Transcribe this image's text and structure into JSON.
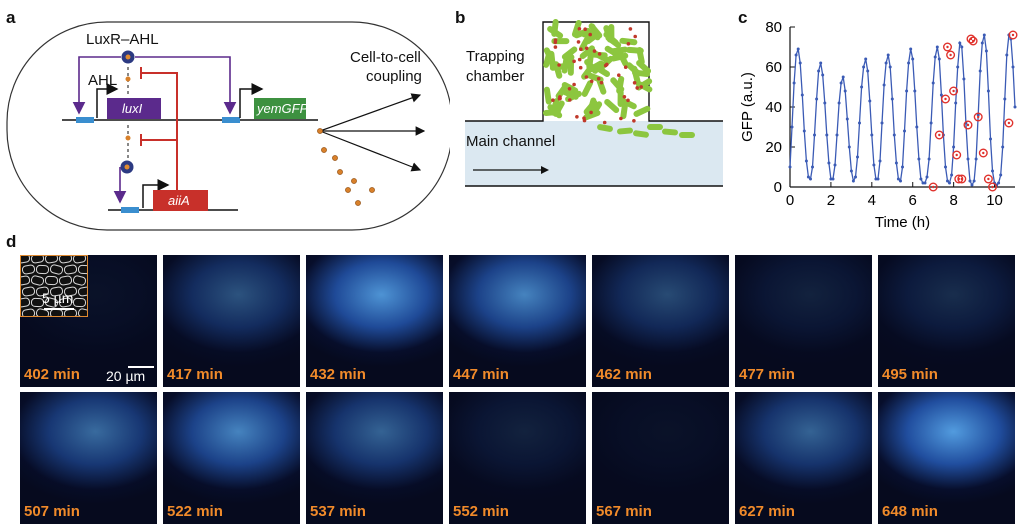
{
  "panels": {
    "a": {
      "letter": "a",
      "luxr_ahl": "LuxR–AHL",
      "ahl": "AHL",
      "luxI": "luxI",
      "yemGFP": "yemGFP",
      "aiiA": "aiiA",
      "coupling": "Cell-to-cell coupling",
      "coupling_line1": "Cell-to-cell",
      "coupling_line2": "coupling",
      "colors": {
        "activation": "#5b2a8c",
        "repression": "#c8302a",
        "luxI_box": "#5b2a8c",
        "gfp_box": "#3d9140",
        "aiiA_box": "#c8302a",
        "promoter": "#3a8ecf",
        "ahl_dot": "#d8802a"
      }
    },
    "b": {
      "letter": "b",
      "trapping_line1": "Trapping",
      "trapping_line2": "chamber",
      "main_channel": "Main channel",
      "colors": {
        "channel": "#dbe8f1",
        "cell": "#8cc63f",
        "ahl_dot": "#c0392b"
      }
    },
    "c": {
      "letter": "c"
    },
    "d": {
      "letter": "d",
      "inset_scale": "5 µm",
      "frame_scale": "20 µm",
      "frames": [
        {
          "time": "402 min",
          "level": 0.05
        },
        {
          "time": "417 min",
          "level": 0.45
        },
        {
          "time": "432 min",
          "level": 0.85
        },
        {
          "time": "447 min",
          "level": 0.75
        },
        {
          "time": "462 min",
          "level": 0.4
        },
        {
          "time": "477 min",
          "level": 0.15
        },
        {
          "time": "495 min",
          "level": 0.22
        },
        {
          "time": "507 min",
          "level": 0.6
        },
        {
          "time": "522 min",
          "level": 0.75
        },
        {
          "time": "537 min",
          "level": 0.55
        },
        {
          "time": "552 min",
          "level": 0.15
        },
        {
          "time": "567 min",
          "level": 0.05
        },
        {
          "time": "627 min",
          "level": 0.55
        },
        {
          "time": "648 min",
          "level": 0.9
        }
      ]
    }
  },
  "chart_data": {
    "type": "line",
    "xlabel": "Time (h)",
    "ylabel": "GFP (a.u.)",
    "xlim": [
      0,
      11
    ],
    "ylim": [
      0,
      80
    ],
    "xticks": [
      "0",
      "2",
      "4",
      "6",
      "8",
      "10"
    ],
    "yticks": [
      "0",
      "20",
      "40",
      "60",
      "80"
    ],
    "grid": false,
    "series": [
      {
        "style": "blue line with small dot markers",
        "color": "#3b5bb5",
        "x": [
          0,
          0.1,
          0.2,
          0.3,
          0.4,
          0.5,
          0.6,
          0.7,
          0.8,
          0.9,
          1.0,
          1.1,
          1.2,
          1.3,
          1.4,
          1.5,
          1.6,
          1.7,
          1.8,
          1.9,
          2.0,
          2.1,
          2.2,
          2.3,
          2.4,
          2.5,
          2.6,
          2.7,
          2.8,
          2.9,
          3.0,
          3.1,
          3.2,
          3.3,
          3.4,
          3.5,
          3.6,
          3.7,
          3.8,
          3.9,
          4.0,
          4.1,
          4.2,
          4.3,
          4.4,
          4.5,
          4.6,
          4.7,
          4.8,
          4.9,
          5.0,
          5.1,
          5.2,
          5.3,
          5.4,
          5.5,
          5.6,
          5.7,
          5.8,
          5.9,
          6.0,
          6.1,
          6.2,
          6.3,
          6.4,
          6.5,
          6.6,
          6.7,
          6.8,
          6.9,
          7.0,
          7.1,
          7.2,
          7.3,
          7.4,
          7.5,
          7.6,
          7.7,
          7.8,
          7.9,
          8.0,
          8.1,
          8.2,
          8.3,
          8.4,
          8.5,
          8.6,
          8.7,
          8.8,
          8.9,
          9.0,
          9.1,
          9.2,
          9.3,
          9.4,
          9.5,
          9.6,
          9.7,
          9.8,
          9.9,
          10.0,
          10.1,
          10.2,
          10.3,
          10.4,
          10.5,
          10.6,
          10.7,
          10.8,
          10.9,
          11.0
        ],
        "y": [
          10,
          30,
          52,
          66,
          69,
          62,
          46,
          28,
          13,
          5,
          4,
          10,
          26,
          44,
          58,
          62,
          56,
          42,
          26,
          12,
          4,
          4,
          11,
          26,
          42,
          52,
          55,
          48,
          34,
          20,
          8,
          3,
          5,
          15,
          32,
          50,
          60,
          64,
          58,
          43,
          26,
          11,
          4,
          4,
          13,
          32,
          51,
          62,
          66,
          60,
          44,
          26,
          12,
          4,
          3,
          10,
          28,
          48,
          62,
          69,
          64,
          48,
          30,
          14,
          4,
          2,
          2,
          5,
          14,
          32,
          52,
          65,
          70,
          64,
          46,
          26,
          10,
          3,
          2,
          6,
          20,
          42,
          60,
          72,
          70,
          54,
          32,
          14,
          3,
          1,
          3,
          14,
          36,
          58,
          72,
          76,
          68,
          48,
          24,
          8,
          2,
          1,
          2,
          6,
          20,
          44,
          66,
          76,
          74,
          60,
          40
        ]
      },
      {
        "style": "red open circle markers",
        "color": "#e0312b",
        "x": [
          7.0,
          7.3,
          7.6,
          7.7,
          7.85,
          8.0,
          8.15,
          8.25,
          8.4,
          8.7,
          8.85,
          8.95,
          9.2,
          9.45,
          9.7,
          9.9,
          10.7,
          10.9
        ],
        "y": [
          0,
          26,
          44,
          70,
          66,
          48,
          16,
          4,
          4,
          31,
          74,
          73,
          35,
          17,
          4,
          0,
          32,
          76
        ]
      }
    ]
  }
}
